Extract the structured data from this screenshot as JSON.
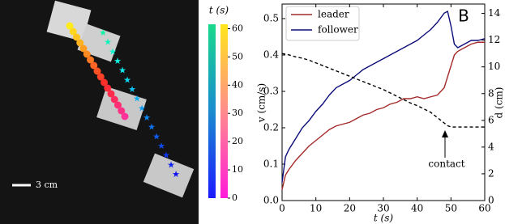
{
  "photo": {
    "scale_bar": "3 cm",
    "colorbar": {
      "label": "t (s)",
      "lim": [
        0,
        61
      ],
      "ticks": [
        0,
        10,
        20,
        30,
        40,
        50,
        60
      ]
    }
  },
  "chart_data": {
    "type": "line",
    "panel_label": "B",
    "xlabel": "t (s)",
    "ylabel": "v (cm/s)",
    "y2label": "d (cm)",
    "annotations": [
      "contact"
    ],
    "x": [
      0,
      1,
      2,
      4,
      6,
      8,
      10,
      12,
      14,
      16,
      18,
      20,
      22,
      24,
      26,
      28,
      30,
      32,
      34,
      36,
      38,
      40,
      42,
      44,
      46,
      48,
      49,
      50,
      51,
      52,
      54,
      56,
      58,
      60
    ],
    "series": [
      {
        "name": "leader",
        "color": "#a52a2a",
        "values": [
          0.03,
          0.07,
          0.085,
          0.11,
          0.13,
          0.15,
          0.165,
          0.18,
          0.195,
          0.205,
          0.21,
          0.215,
          0.225,
          0.235,
          0.24,
          0.25,
          0.255,
          0.265,
          0.27,
          0.28,
          0.28,
          0.285,
          0.28,
          0.285,
          0.29,
          0.31,
          0.34,
          0.37,
          0.4,
          0.41,
          0.42,
          0.43,
          0.435,
          0.435
        ]
      },
      {
        "name": "follower",
        "color": "#0d0d7a",
        "values": [
          0.05,
          0.12,
          0.14,
          0.17,
          0.2,
          0.22,
          0.245,
          0.265,
          0.29,
          0.31,
          0.32,
          0.33,
          0.345,
          0.36,
          0.37,
          0.38,
          0.39,
          0.4,
          0.41,
          0.42,
          0.43,
          0.44,
          0.455,
          0.47,
          0.49,
          0.515,
          0.52,
          0.48,
          0.43,
          0.42,
          0.43,
          0.44,
          0.44,
          0.445
        ]
      },
      {
        "color": "#000000",
        "dashed": true,
        "axis": "y2",
        "values": [
          11,
          10.95,
          10.9,
          10.75,
          10.65,
          10.5,
          10.3,
          10.1,
          9.9,
          9.7,
          9.5,
          9.3,
          9.1,
          8.9,
          8.7,
          8.5,
          8.3,
          8.05,
          7.8,
          7.55,
          7.3,
          7.1,
          6.85,
          6.6,
          6.2,
          5.8,
          5.6,
          5.5,
          5.5,
          5.5,
          5.5,
          5.5,
          5.5,
          5.5
        ]
      }
    ],
    "xlim": [
      0,
      60
    ],
    "xticks": [
      0,
      10,
      20,
      30,
      40,
      50,
      60
    ],
    "ylim": [
      0,
      0.54
    ],
    "yticks": [
      {
        "value": 0,
        "label": "0.0"
      },
      0.1,
      0.2,
      0.3,
      0.4,
      0.5
    ],
    "y2lim": [
      0,
      14.7
    ],
    "y2ticks": [
      0,
      2,
      4,
      6,
      8,
      10,
      12,
      14
    ],
    "legend": "upper left"
  }
}
